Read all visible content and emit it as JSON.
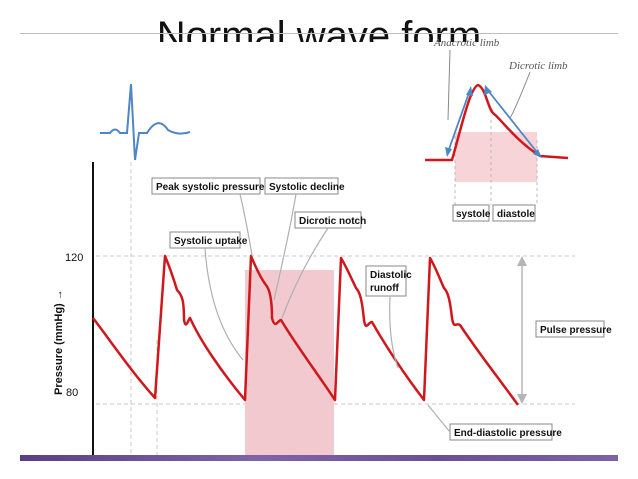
{
  "slide": {
    "title": "Normal wave form"
  },
  "axis": {
    "y_label": "Pressure (mmHg) →",
    "tick_120": "120",
    "tick_80": "80"
  },
  "labels": {
    "peak_systolic": "Peak systolic pressure",
    "systolic_decline": "Systolic decline",
    "dicrotic_notch": "Dicrotic notch",
    "systolic_uptake": "Systolic uptake",
    "diastolic_runoff_1": "Diastolic",
    "diastolic_runoff_2": "runoff",
    "pulse_pressure": "Pulse pressure",
    "end_diastolic": "End-diastolic  pressure"
  },
  "inset": {
    "anacrotic_limb": "Anacrotic limb",
    "dicrotic_limb": "Dicrotic limb",
    "systole": "systole",
    "diastole": "diastole"
  },
  "colors": {
    "waveform": "#d0171b",
    "shade": "#f1c9cf",
    "ecg": "#4f86c6",
    "guide": "#bdbdbd"
  }
}
